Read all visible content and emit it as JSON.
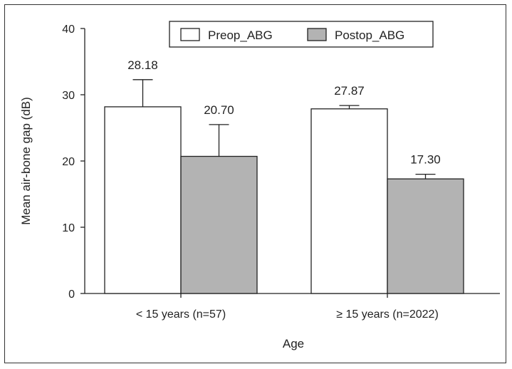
{
  "chart_data": {
    "type": "bar",
    "categories": [
      "< 15 years (n=57)",
      "≥ 15 years (n=2022)"
    ],
    "series": [
      {
        "name": "Preop_ABG",
        "values": [
          28.18,
          27.87
        ],
        "error_upper": [
          4.1,
          0.5
        ],
        "value_labels": [
          "28.18",
          "27.87"
        ],
        "color": "#ffffff"
      },
      {
        "name": "Postop_ABG",
        "values": [
          20.7,
          17.3
        ],
        "error_upper": [
          4.8,
          0.7
        ],
        "value_labels": [
          "20.70",
          "17.30"
        ],
        "color": "#b3b3b3"
      }
    ],
    "xlabel": "Age",
    "ylabel": "Mean air-bone gap (dB)",
    "ylim": [
      0,
      40
    ],
    "yticks": [
      0,
      10,
      20,
      30,
      40
    ],
    "ytick_labels": [
      "0",
      "10",
      "20",
      "30",
      "40"
    ],
    "grid": false,
    "legend": "top-center",
    "bar_edge_color": "#222222"
  }
}
